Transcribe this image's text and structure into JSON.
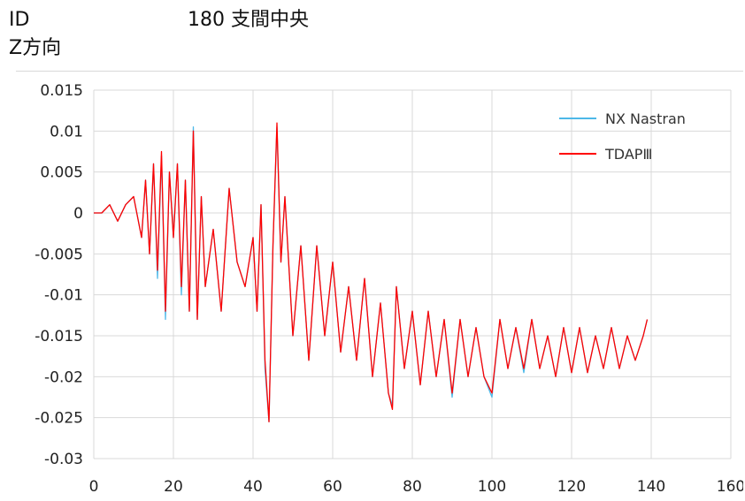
{
  "header": {
    "id_label": "ID",
    "case_label": "180 支間中央",
    "direction_label": "Z方向"
  },
  "chart_data": {
    "type": "line",
    "title": "",
    "xlabel": "",
    "ylabel": "",
    "xlim": [
      0,
      160
    ],
    "ylim": [
      -0.03,
      0.015
    ],
    "x_ticks": [
      0,
      20,
      40,
      60,
      80,
      100,
      120,
      140,
      160
    ],
    "x_tick_labels": [
      "0",
      "20",
      "40",
      "60",
      "80",
      "100",
      "120",
      "140",
      "160"
    ],
    "y_ticks": [
      0.015,
      0.01,
      0.005,
      0,
      -0.005,
      -0.01,
      -0.015,
      -0.02,
      -0.025,
      -0.03
    ],
    "y_tick_labels": [
      "0.015",
      "0.01",
      "0.005",
      "0",
      "-0.005",
      "-0.01",
      "-0.015",
      "-0.02",
      "-0.025",
      "-0.03"
    ],
    "grid": true,
    "legend_position": "top-right",
    "series": [
      {
        "name": "NX Nastran",
        "color": "#4db8e8",
        "x": [
          0,
          2,
          4,
          6,
          8,
          10,
          12,
          13,
          14,
          15,
          16,
          17,
          18,
          19,
          20,
          21,
          22,
          23,
          24,
          25,
          26,
          27,
          28,
          30,
          32,
          34,
          36,
          38,
          40,
          41,
          42,
          43,
          44,
          45,
          46,
          47,
          48,
          50,
          52,
          54,
          56,
          58,
          60,
          62,
          64,
          66,
          68,
          70,
          72,
          74,
          75,
          76,
          78,
          80,
          82,
          84,
          86,
          88,
          90,
          92,
          94,
          96,
          98,
          100,
          102,
          104,
          106,
          108,
          110,
          112,
          114,
          116,
          118,
          120,
          122,
          124,
          126,
          128,
          130,
          132,
          134,
          136,
          138,
          139
        ],
        "y": [
          0,
          0,
          0.001,
          -0.001,
          0.001,
          0.002,
          -0.003,
          0.004,
          -0.005,
          0.006,
          -0.008,
          0.007,
          -0.013,
          0.005,
          -0.003,
          0.006,
          -0.01,
          0.004,
          -0.012,
          0.0105,
          -0.013,
          0.002,
          -0.009,
          -0.002,
          -0.012,
          0.003,
          -0.006,
          -0.009,
          -0.003,
          -0.012,
          0.001,
          -0.019,
          -0.0255,
          -0.004,
          0.0105,
          -0.006,
          0.002,
          -0.015,
          -0.004,
          -0.018,
          -0.004,
          -0.015,
          -0.006,
          -0.017,
          -0.009,
          -0.018,
          -0.008,
          -0.02,
          -0.011,
          -0.022,
          -0.0235,
          -0.009,
          -0.019,
          -0.012,
          -0.021,
          -0.012,
          -0.02,
          -0.013,
          -0.0225,
          -0.013,
          -0.02,
          -0.014,
          -0.02,
          -0.0225,
          -0.013,
          -0.019,
          -0.014,
          -0.0195,
          -0.013,
          -0.019,
          -0.015,
          -0.02,
          -0.014,
          -0.0195,
          -0.014,
          -0.0195,
          -0.015,
          -0.019,
          -0.014,
          -0.019,
          -0.015,
          -0.018,
          -0.015,
          -0.013
        ]
      },
      {
        "name": "TDAPⅢ",
        "color": "#ff0000",
        "x": [
          0,
          2,
          4,
          6,
          8,
          10,
          12,
          13,
          14,
          15,
          16,
          17,
          18,
          19,
          20,
          21,
          22,
          23,
          24,
          25,
          26,
          27,
          28,
          30,
          32,
          34,
          36,
          38,
          40,
          41,
          42,
          43,
          44,
          45,
          46,
          47,
          48,
          50,
          52,
          54,
          56,
          58,
          60,
          62,
          64,
          66,
          68,
          70,
          72,
          74,
          75,
          76,
          78,
          80,
          82,
          84,
          86,
          88,
          90,
          92,
          94,
          96,
          98,
          100,
          102,
          104,
          106,
          108,
          110,
          112,
          114,
          116,
          118,
          120,
          122,
          124,
          126,
          128,
          130,
          132,
          134,
          136,
          138,
          139
        ],
        "y": [
          0,
          0,
          0.001,
          -0.001,
          0.001,
          0.002,
          -0.003,
          0.004,
          -0.005,
          0.006,
          -0.007,
          0.0075,
          -0.012,
          0.005,
          -0.003,
          0.006,
          -0.009,
          0.004,
          -0.012,
          0.01,
          -0.013,
          0.002,
          -0.009,
          -0.002,
          -0.012,
          0.003,
          -0.006,
          -0.009,
          -0.003,
          -0.012,
          0.001,
          -0.018,
          -0.0255,
          -0.004,
          0.011,
          -0.006,
          0.002,
          -0.015,
          -0.004,
          -0.018,
          -0.004,
          -0.015,
          -0.006,
          -0.017,
          -0.009,
          -0.018,
          -0.008,
          -0.02,
          -0.011,
          -0.022,
          -0.024,
          -0.009,
          -0.019,
          -0.012,
          -0.021,
          -0.012,
          -0.02,
          -0.013,
          -0.022,
          -0.013,
          -0.02,
          -0.014,
          -0.02,
          -0.022,
          -0.013,
          -0.019,
          -0.014,
          -0.019,
          -0.013,
          -0.019,
          -0.015,
          -0.02,
          -0.014,
          -0.0195,
          -0.014,
          -0.0195,
          -0.015,
          -0.019,
          -0.014,
          -0.019,
          -0.015,
          -0.018,
          -0.015,
          -0.013
        ]
      }
    ]
  }
}
